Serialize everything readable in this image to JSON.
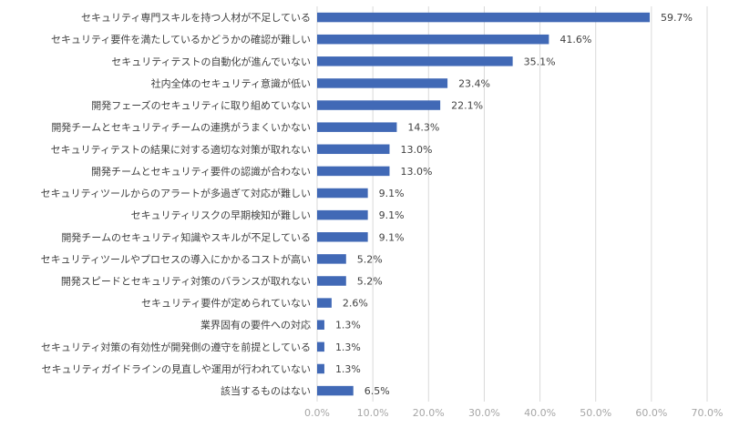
{
  "chart_data": {
    "type": "bar",
    "orientation": "horizontal",
    "categories": [
      "セキュリティ専門スキルを持つ人材が不足している",
      "セキュリティ要件を満たしているかどうかの確認が難しい",
      "セキュリティテストの自動化が進んでいない",
      "社内全体のセキュリティ意識が低い",
      "開発フェーズのセキュリティに取り組めていない",
      "開発チームとセキュリティチームの連携がうまくいかない",
      "セキュリティテストの結果に対する適切な対策が取れない",
      "開発チームとセキュリティ要件の認識が合わない",
      "セキュリティツールからのアラートが多過ぎて対応が難しい",
      "セキュリティリスクの早期検知が難しい",
      "開発チームのセキュリティ知識やスキルが不足している",
      "セキュリティツールやプロセスの導入にかかるコストが高い",
      "開発スピードとセキュリティ対策のバランスが取れない",
      "セキュリティ要件が定められていない",
      "業界固有の要件への対応",
      "セキュリティ対策の有効性が開発側の遵守を前提としている",
      "セキュリティガイドラインの見直しや運用が行われていない",
      "該当するものはない"
    ],
    "values": [
      59.7,
      41.6,
      35.1,
      23.4,
      22.1,
      14.3,
      13.0,
      13.0,
      9.1,
      9.1,
      9.1,
      5.2,
      5.2,
      2.6,
      1.3,
      1.3,
      1.3,
      6.5
    ],
    "data_labels": [
      "59.7%",
      "41.6%",
      "35.1%",
      "23.4%",
      "22.1%",
      "14.3%",
      "13.0%",
      "13.0%",
      "9.1%",
      "9.1%",
      "9.1%",
      "5.2%",
      "5.2%",
      "2.6%",
      "1.3%",
      "1.3%",
      "1.3%",
      "6.5%"
    ],
    "x_ticks": [
      0,
      10,
      20,
      30,
      40,
      50,
      60,
      70
    ],
    "x_tick_labels": [
      "0.0%",
      "10.0%",
      "20.0%",
      "30.0%",
      "40.0%",
      "50.0%",
      "60.0%",
      "70.0%"
    ],
    "xlim": [
      0,
      70
    ],
    "grid": "vertical",
    "legend": "none",
    "colors": {
      "bar": "#4169B6",
      "grid": "#D9D9D9",
      "text": "#404040",
      "tick_text": "#A6A6A6"
    }
  }
}
